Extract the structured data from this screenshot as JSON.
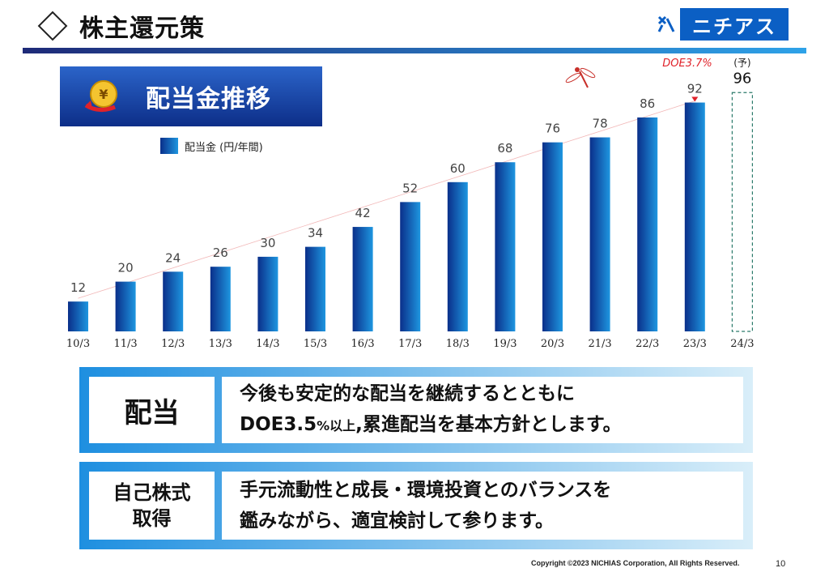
{
  "header": {
    "title": "株主還元策",
    "logo_text": "ニチアス"
  },
  "banner": {
    "title": "配当金推移"
  },
  "chart_data": {
    "type": "bar",
    "legend": "配当金 (円/年間)",
    "categories": [
      "10/3",
      "11/3",
      "12/3",
      "13/3",
      "14/3",
      "15/3",
      "16/3",
      "17/3",
      "18/3",
      "19/3",
      "20/3",
      "21/3",
      "22/3",
      "23/3",
      "24/3"
    ],
    "values": [
      12,
      20,
      24,
      26,
      30,
      34,
      42,
      52,
      60,
      68,
      76,
      78,
      86,
      92,
      96
    ],
    "forecast_index": 14,
    "forecast_note": "(予)",
    "annotation": "DOE3.7%",
    "ylim": [
      0,
      100
    ],
    "colors": {
      "bar_dark": "#0a2f8a",
      "bar_light": "#1e96e0",
      "annotation": "#e0222a"
    }
  },
  "box1": {
    "heading": "配当",
    "line1": "今後も安定的な配当を継続するとともに",
    "line2a": "DOE3.5",
    "line2b": "%以上",
    "line2c": ",累進配当を基本方針とします。"
  },
  "box2": {
    "heading_line1": "自己株式",
    "heading_line2": "取得",
    "line1": "手元流動性と成長・環境投資とのバランスを",
    "line2": "鑑みながら、適宜検討して参ります。"
  },
  "footer": {
    "copyright": "Copyright ©2023 NICHIAS Corporation, All Rights Reserved.",
    "page": "10"
  }
}
